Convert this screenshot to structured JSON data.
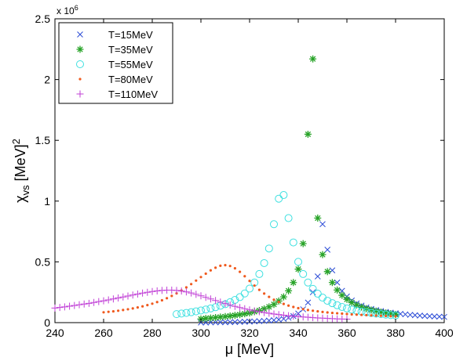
{
  "chart_data": {
    "type": "scatter",
    "title": "",
    "xlabel": "μ [MeV]",
    "ylabel": {
      "main": "χ",
      "sub": "vs",
      "rest": " [MeV]",
      "sup": "2"
    },
    "y_multiplier": {
      "base": "x 10",
      "exp": "6"
    },
    "xlim": [
      240,
      400
    ],
    "ylim": [
      0,
      2.5
    ],
    "xticks": [
      "240",
      "260",
      "280",
      "300",
      "320",
      "340",
      "360",
      "380",
      "400"
    ],
    "yticks": [
      "0",
      "0.5",
      "1",
      "1.5",
      "2",
      "2.5"
    ],
    "grid": false,
    "legend_position": "top-left",
    "series": [
      {
        "name": "T=15MeV",
        "marker": "x",
        "color": "#2b4bd6",
        "x": [
          300,
          302,
          304,
          306,
          308,
          310,
          312,
          314,
          316,
          318,
          320,
          322,
          324,
          326,
          328,
          330,
          332,
          334,
          336,
          338,
          340,
          342,
          344,
          346,
          348,
          350,
          352,
          354,
          356,
          358,
          360,
          362,
          364,
          366,
          368,
          370,
          372,
          374,
          376,
          378,
          380,
          382,
          384,
          386,
          388,
          390,
          392,
          394,
          396,
          398,
          400
        ],
        "y": [
          0.001,
          0.001,
          0.002,
          0.002,
          0.003,
          0.003,
          0.004,
          0.005,
          0.006,
          0.007,
          0.008,
          0.01,
          0.012,
          0.014,
          0.017,
          0.02,
          0.025,
          0.031,
          0.04,
          0.054,
          0.075,
          0.11,
          0.165,
          0.25,
          0.38,
          0.81,
          0.6,
          0.43,
          0.33,
          0.262,
          0.215,
          0.182,
          0.158,
          0.14,
          0.125,
          0.113,
          0.103,
          0.095,
          0.088,
          0.082,
          0.077,
          0.072,
          0.068,
          0.064,
          0.061,
          0.058,
          0.055,
          0.053,
          0.051,
          0.049,
          0.047
        ]
      },
      {
        "name": "T=35MeV",
        "marker": "*",
        "color": "#27a327",
        "x": [
          300,
          302,
          304,
          306,
          308,
          310,
          312,
          314,
          316,
          318,
          320,
          322,
          324,
          326,
          328,
          330,
          332,
          334,
          336,
          338,
          340,
          342,
          344,
          346,
          348,
          350,
          352,
          354,
          356,
          358,
          360,
          362,
          364,
          366,
          368,
          370,
          372,
          374,
          376,
          378,
          380
        ],
        "y": [
          0.03,
          0.035,
          0.038,
          0.042,
          0.046,
          0.05,
          0.055,
          0.06,
          0.066,
          0.073,
          0.08,
          0.09,
          0.1,
          0.113,
          0.13,
          0.15,
          0.178,
          0.212,
          0.262,
          0.33,
          0.44,
          0.65,
          1.55,
          2.17,
          0.86,
          0.56,
          0.42,
          0.33,
          0.268,
          0.225,
          0.192,
          0.165,
          0.145,
          0.128,
          0.115,
          0.104,
          0.095,
          0.087,
          0.08,
          0.074,
          0.068
        ]
      },
      {
        "name": "T=55MeV",
        "marker": "o",
        "color": "#3fe0e0",
        "x": [
          290,
          292,
          294,
          296,
          298,
          300,
          302,
          304,
          306,
          308,
          310,
          312,
          314,
          316,
          318,
          320,
          322,
          324,
          326,
          328,
          330,
          332,
          334,
          336,
          338,
          340,
          342,
          344,
          346,
          348,
          350,
          352,
          354,
          356,
          358,
          360,
          362,
          364,
          366,
          368,
          370,
          372,
          374,
          376,
          378,
          380
        ],
        "y": [
          0.07,
          0.075,
          0.08,
          0.086,
          0.093,
          0.1,
          0.108,
          0.117,
          0.127,
          0.139,
          0.152,
          0.168,
          0.187,
          0.21,
          0.24,
          0.28,
          0.33,
          0.4,
          0.49,
          0.61,
          0.81,
          1.02,
          1.05,
          0.86,
          0.66,
          0.5,
          0.4,
          0.33,
          0.278,
          0.238,
          0.206,
          0.18,
          0.16,
          0.143,
          0.129,
          0.117,
          0.107,
          0.098,
          0.091,
          0.085,
          0.079,
          0.074,
          0.07,
          0.066,
          0.062,
          0.059
        ]
      },
      {
        "name": "T=80MeV",
        "marker": ".",
        "color": "#f05a1e",
        "x": [
          260,
          262,
          264,
          266,
          268,
          270,
          272,
          274,
          276,
          278,
          280,
          282,
          284,
          286,
          288,
          290,
          292,
          294,
          296,
          298,
          300,
          302,
          304,
          306,
          308,
          310,
          312,
          314,
          316,
          318,
          320,
          322,
          324,
          326,
          328,
          330,
          332,
          334,
          336,
          338,
          340,
          342,
          344,
          346,
          348,
          350,
          352,
          354,
          356,
          358,
          360,
          362,
          364,
          366,
          368,
          370,
          372,
          374,
          376,
          378,
          380
        ],
        "y": [
          0.085,
          0.089,
          0.093,
          0.098,
          0.104,
          0.11,
          0.117,
          0.125,
          0.134,
          0.144,
          0.156,
          0.169,
          0.184,
          0.201,
          0.22,
          0.241,
          0.264,
          0.29,
          0.317,
          0.346,
          0.375,
          0.403,
          0.43,
          0.452,
          0.468,
          0.473,
          0.466,
          0.447,
          0.418,
          0.382,
          0.343,
          0.305,
          0.27,
          0.239,
          0.212,
          0.189,
          0.17,
          0.154,
          0.14,
          0.129,
          0.119,
          0.111,
          0.104,
          0.098,
          0.093,
          0.088,
          0.084,
          0.08,
          0.077,
          0.074,
          0.071,
          0.068,
          0.066,
          0.064,
          0.062,
          0.06,
          0.058,
          0.056,
          0.055,
          0.053,
          0.052
        ]
      },
      {
        "name": "T=110MeV",
        "marker": "+",
        "color": "#c03fd6",
        "x": [
          240,
          242,
          244,
          246,
          248,
          250,
          252,
          254,
          256,
          258,
          260,
          262,
          264,
          266,
          268,
          270,
          272,
          274,
          276,
          278,
          280,
          282,
          284,
          286,
          288,
          290,
          292,
          294,
          296,
          298,
          300,
          302,
          304,
          306,
          308,
          310,
          312,
          314,
          316,
          318,
          320,
          322,
          324,
          326,
          328,
          330,
          332,
          334,
          336,
          338,
          340,
          342,
          344,
          346,
          348,
          350,
          352,
          354,
          356,
          358,
          360
        ],
        "y": [
          0.12,
          0.125,
          0.13,
          0.135,
          0.141,
          0.147,
          0.153,
          0.159,
          0.166,
          0.173,
          0.18,
          0.187,
          0.195,
          0.203,
          0.211,
          0.219,
          0.227,
          0.235,
          0.243,
          0.25,
          0.256,
          0.261,
          0.265,
          0.267,
          0.267,
          0.265,
          0.26,
          0.253,
          0.244,
          0.233,
          0.221,
          0.208,
          0.195,
          0.182,
          0.169,
          0.157,
          0.145,
          0.134,
          0.124,
          0.114,
          0.105,
          0.097,
          0.09,
          0.083,
          0.077,
          0.071,
          0.066,
          0.061,
          0.057,
          0.053,
          0.05,
          0.047,
          0.044,
          0.041,
          0.039,
          0.037,
          0.035,
          0.033,
          0.031,
          0.03,
          0.028
        ]
      }
    ]
  }
}
